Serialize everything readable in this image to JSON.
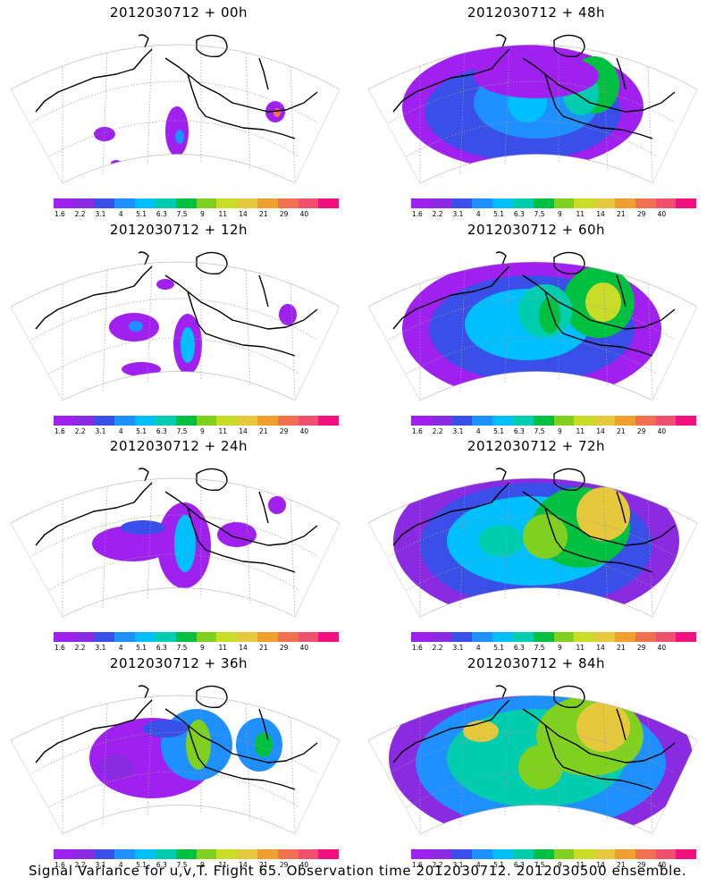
{
  "panels": [
    {
      "title": "2012030712 + 00h",
      "intensity": 0
    },
    {
      "title": "2012030712 + 48h",
      "intensity": 4
    },
    {
      "title": "2012030712 + 12h",
      "intensity": 1
    },
    {
      "title": "2012030712 + 60h",
      "intensity": 5
    },
    {
      "title": "2012030712 + 24h",
      "intensity": 2
    },
    {
      "title": "2012030712 + 72h",
      "intensity": 6
    },
    {
      "title": "2012030712 + 36h",
      "intensity": 3
    },
    {
      "title": "2012030712 + 84h",
      "intensity": 7
    }
  ],
  "colorbar": {
    "labels": [
      "1.6",
      "2.2",
      "3.1",
      "4",
      "5.1",
      "6.3",
      "7.5",
      "9",
      "11",
      "14",
      "21",
      "29",
      "40"
    ],
    "colors": [
      "#a020f0",
      "#8a2be2",
      "#3a4fe8",
      "#1e90ff",
      "#00bfff",
      "#00cdb0",
      "#00c040",
      "#80d020",
      "#c8dc28",
      "#e6c83c",
      "#f0a030",
      "#f07050",
      "#f0506e",
      "#f0107e"
    ]
  },
  "caption": "Signal Variance for u,v,T. Flight 65. Observation time 2012030712. 2012030500 ensemble."
}
